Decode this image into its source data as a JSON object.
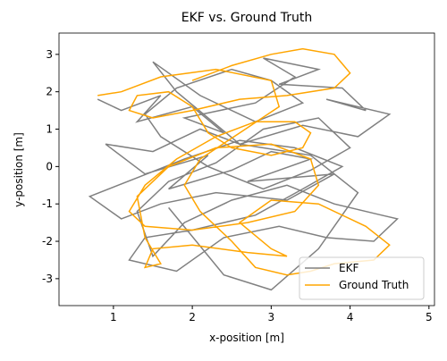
{
  "chart_data": {
    "type": "line",
    "title": "EKF vs. Ground Truth",
    "x_label": "x-position [m]",
    "y_label": "y-position [m]",
    "xlim": [
      0.31,
      5.07
    ],
    "ylim": [
      -3.72,
      3.57
    ],
    "xticks": [
      1,
      2,
      3,
      4,
      5
    ],
    "yticks": [
      -3,
      -2,
      -1,
      0,
      1,
      2,
      3
    ],
    "legend": "lower right",
    "series": [
      {
        "name": "EKF",
        "color": "#808080",
        "x": [
          0.8,
          1.1,
          1.6,
          1.3,
          2.0,
          2.4,
          1.9,
          2.8,
          3.3,
          2.9,
          3.6,
          3.1,
          3.9,
          4.2,
          3.7,
          4.5,
          4.1,
          3.4,
          2.6,
          2.1,
          1.5,
          0.9,
          1.4,
          2.2,
          1.7,
          2.5,
          3.0,
          3.5,
          2.7,
          3.8,
          3.2,
          2.3,
          1.6,
          1.1,
          0.7,
          1.3,
          1.9,
          2.6,
          3.3,
          3.9,
          3.4,
          2.8,
          2.0,
          1.4,
          1.2,
          1.8,
          2.4,
          3.1,
          3.7,
          4.3,
          4.6,
          4.4,
          3.8,
          3.2,
          2.5,
          1.9,
          1.5,
          1.3,
          1.7,
          2.3,
          2.9,
          3.6,
          4.0,
          3.5,
          2.9,
          2.2,
          1.6,
          1.4,
          1.8,
          2.5,
          3.0,
          3.4,
          2.8,
          2.1,
          1.5,
          1.8,
          2.6,
          3.5,
          4.1,
          3.6,
          3.0,
          2.4,
          1.7
        ],
        "values": [
          1.8,
          1.5,
          1.9,
          1.2,
          1.6,
          0.9,
          1.3,
          1.7,
          2.4,
          2.9,
          2.6,
          2.2,
          2.1,
          1.5,
          1.8,
          1.4,
          0.8,
          1.1,
          0.6,
          1.0,
          0.4,
          0.6,
          -0.2,
          0.3,
          -0.6,
          -0.1,
          0.4,
          0.2,
          -0.4,
          -0.2,
          -0.9,
          -0.7,
          -1.0,
          -1.4,
          -0.8,
          -0.3,
          0.2,
          0.7,
          0.5,
          0.0,
          -0.6,
          -1.3,
          -1.7,
          -1.9,
          -2.5,
          -2.8,
          -1.9,
          -1.6,
          -1.9,
          -2.0,
          -1.4,
          -1.3,
          -1.0,
          -0.5,
          -0.9,
          -1.5,
          -2.4,
          -1.2,
          -0.4,
          0.1,
          1.0,
          1.3,
          0.5,
          -0.1,
          -0.6,
          0.0,
          0.8,
          1.4,
          2.1,
          2.6,
          2.3,
          1.7,
          1.2,
          1.9,
          2.8,
          2.0,
          0.6,
          0.3,
          -0.7,
          -2.2,
          -3.3,
          -2.9,
          -1.1
        ]
      },
      {
        "name": "Ground Truth",
        "color": "#ffa500",
        "x": [
          2.0,
          2.5,
          3.0,
          3.4,
          3.8,
          4.0,
          3.8,
          3.2,
          2.6,
          2.0,
          1.5,
          1.2,
          1.3,
          1.7,
          2.0,
          2.2,
          2.5,
          3.0,
          3.4,
          3.5,
          3.3,
          2.8,
          2.3,
          1.8,
          1.4,
          1.2,
          1.4,
          2.0,
          2.7,
          3.3,
          3.6,
          3.5,
          3.0,
          2.3,
          1.7,
          1.3,
          1.4,
          1.6,
          1.4,
          1.5,
          2.0,
          2.7,
          3.2,
          3.0,
          2.6,
          3.0,
          3.6,
          4.2,
          4.5,
          4.3,
          3.8,
          3.5,
          3.2,
          2.8,
          2.5,
          2.1,
          1.9,
          2.1,
          2.6,
          3.1,
          3.0,
          2.3,
          1.6,
          1.1,
          0.8
        ],
        "values": [
          2.3,
          2.7,
          3.0,
          3.15,
          3.0,
          2.5,
          2.1,
          1.9,
          1.8,
          1.5,
          1.3,
          1.5,
          1.9,
          2.0,
          1.6,
          0.9,
          0.5,
          0.3,
          0.5,
          0.9,
          1.2,
          1.2,
          0.8,
          0.2,
          -0.5,
          -1.2,
          -1.6,
          -1.7,
          -1.5,
          -1.2,
          -0.5,
          0.2,
          0.6,
          0.5,
          0.0,
          -0.8,
          -1.9,
          -2.6,
          -2.7,
          -2.2,
          -2.1,
          -2.3,
          -2.4,
          -2.2,
          -1.5,
          -0.9,
          -1.0,
          -1.6,
          -2.1,
          -2.5,
          -2.6,
          -2.8,
          -2.9,
          -2.7,
          -2.0,
          -1.2,
          -0.5,
          0.2,
          0.9,
          1.6,
          2.3,
          2.6,
          2.4,
          2.0,
          1.9
        ]
      }
    ]
  }
}
